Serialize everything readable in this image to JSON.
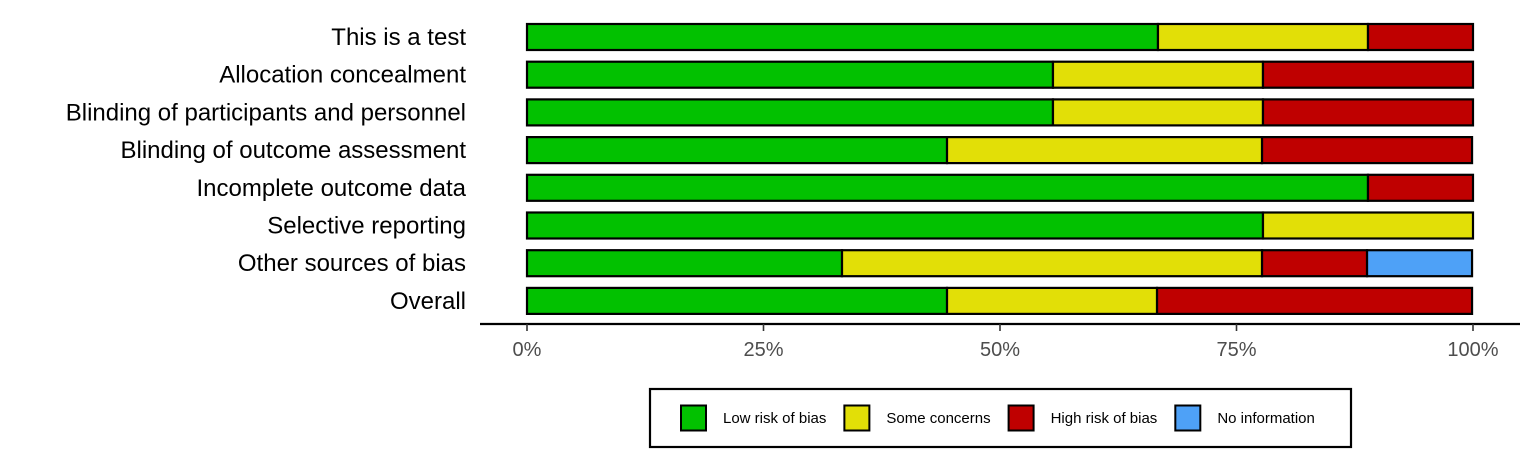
{
  "chart_data": {
    "type": "bar",
    "orientation": "horizontal",
    "stacked": true,
    "title": "",
    "xlabel": "",
    "ylabel": "",
    "xlim": [
      0,
      100
    ],
    "x_ticks": [
      "0%",
      "25%",
      "50%",
      "75%",
      "100%"
    ],
    "grid": false,
    "legend_position": "bottom",
    "categories": [
      "This is a test",
      "Allocation concealment",
      "Blinding of participants and personnel",
      "Blinding of outcome assessment",
      "Incomplete outcome data",
      "Selective reporting",
      "Other sources of bias",
      "Overall"
    ],
    "series": [
      {
        "name": "Low risk of bias",
        "color": "#02C100",
        "values": [
          66.7,
          55.6,
          55.6,
          44.4,
          88.9,
          77.8,
          33.3,
          44.4
        ]
      },
      {
        "name": "Some concerns",
        "color": "#E2DF07",
        "values": [
          22.2,
          22.2,
          22.2,
          33.3,
          0,
          22.2,
          44.4,
          22.2
        ]
      },
      {
        "name": "High risk of bias",
        "color": "#BF0000",
        "values": [
          11.1,
          22.2,
          22.2,
          22.2,
          11.1,
          0,
          11.1,
          33.3
        ]
      },
      {
        "name": "No information",
        "color": "#4EA1F7",
        "values": [
          0,
          0,
          0,
          0,
          0,
          0,
          11.1,
          0
        ]
      }
    ]
  }
}
